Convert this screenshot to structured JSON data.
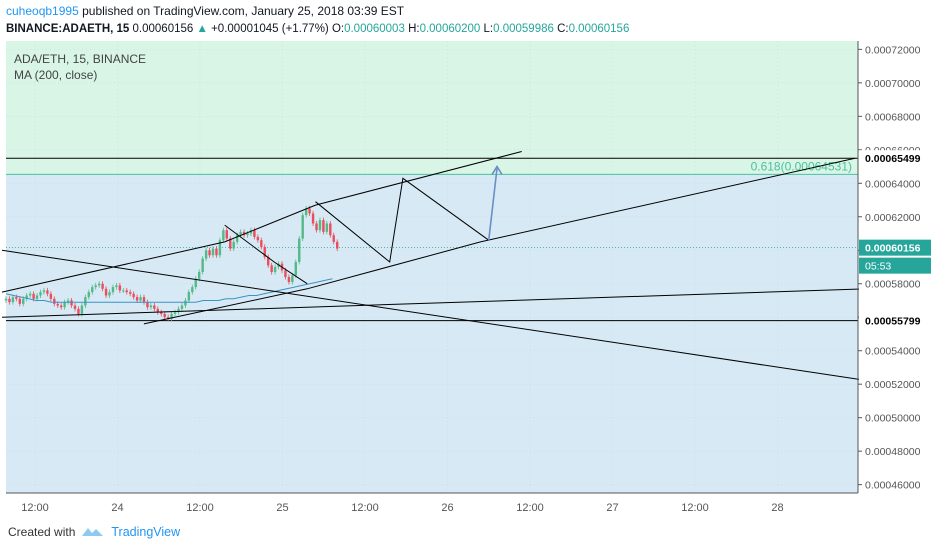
{
  "header": {
    "user": "cuheoqb1995",
    "published_text": "published on TradingView.com, January 25, 2018 03:39 EST",
    "symbol_line": "BINANCE:ADAETH, 15",
    "last": "0.00060156",
    "change_arrow": "▲",
    "change": "+0.00001045 (+1.77%)",
    "o_label": "O:",
    "o_value": "0.00060003",
    "h_label": "H:",
    "h_value": "0.00060200",
    "l_label": "L:",
    "l_value": "0.00059986",
    "c_label": "C:",
    "c_value": "0.00060156"
  },
  "legend": {
    "series": "ADA/ETH, 15, BINANCE",
    "indicator": "MA (200, close)"
  },
  "footer": {
    "created_with": "Created with",
    "brand": "TradingView"
  },
  "colors": {
    "upper_zone": "#d8f5e6",
    "lower_zone": "#d6e9f5",
    "up_candle": "#53b987",
    "down_candle": "#eb4d5c",
    "ma_line": "#3b93c4",
    "arrow": "#6a8fc7",
    "fib": "#4cc0a0"
  },
  "chart_data": {
    "type": "candlestick",
    "title": "ADA/ETH, 15, BINANCE",
    "y_ticks": [
      "0.00072000",
      "0.00070000",
      "0.00068000",
      "0.00066000",
      "0.00064000",
      "0.00062000",
      "0.00060000",
      "0.00058000",
      "0.00056000",
      "0.00054000",
      "0.00052000",
      "0.00050000",
      "0.00048000",
      "0.00046000"
    ],
    "x_ticks": [
      "12:00",
      "24",
      "12:00",
      "25",
      "12:00",
      "26",
      "12:00",
      "27",
      "12:00",
      "28"
    ],
    "ylim": [
      0.000455,
      0.000725
    ],
    "price_labels": {
      "upper_level": "0.00065499",
      "current": "0.00060156",
      "countdown": "05:53",
      "lower_level": "0.00055799"
    },
    "fib_label": "0.618(0.00064531)",
    "fib_value": 0.00064531,
    "upper_level_value": 0.00065499,
    "lower_level_value": 0.00055799,
    "current_value": 0.00060156,
    "time_range_days": [
      23.3,
      28.55
    ],
    "candles_close": [
      0.000571,
      0.000569,
      0.000572,
      0.000571,
      0.000568,
      0.000571,
      0.000573,
      0.000574,
      0.000571,
      0.000573,
      0.000575,
      0.000576,
      0.000574,
      0.000571,
      0.000568,
      0.000567,
      0.000566,
      0.000569,
      0.00057,
      0.000567,
      0.000565,
      0.000562,
      0.000567,
      0.000572,
      0.000575,
      0.000578,
      0.000579,
      0.00058,
      0.000577,
      0.000573,
      0.000575,
      0.000578,
      0.000579,
      0.000576,
      0.000576,
      0.000575,
      0.000574,
      0.000572,
      0.00057,
      0.000572,
      0.000569,
      0.000566,
      0.000567,
      0.000565,
      0.000563,
      0.000562,
      0.00056,
      0.000559,
      0.000562,
      0.000563,
      0.000565,
      0.000567,
      0.00057,
      0.000575,
      0.000578,
      0.000583,
      0.000587,
      0.000595,
      0.0006,
      0.000597,
      0.000601,
      0.000597,
      0.000606,
      0.000612,
      0.000607,
      0.000601,
      0.000605,
      0.000609,
      0.000611,
      0.000609,
      0.00061,
      0.000612,
      0.000608,
      0.000606,
      0.000602,
      0.000596,
      0.000591,
      0.000587,
      0.00059,
      0.000592,
      0.000588,
      0.000584,
      0.000581,
      0.000585,
      0.000593,
      0.000607,
      0.000621,
      0.000625,
      0.000622,
      0.000616,
      0.000612,
      0.000618,
      0.000611,
      0.000616,
      0.000609,
      0.000605,
      0.000601
    ],
    "ma200": [
      0.000574,
      0.000573,
      0.000572,
      0.000571,
      0.00057,
      0.00057,
      0.000569,
      0.000569,
      0.000569,
      0.000569,
      0.000569,
      0.000569,
      0.000569,
      0.000569,
      0.000569,
      0.000569,
      0.000569,
      0.000569,
      0.000569,
      0.000569,
      0.000569,
      0.000569,
      0.000569,
      0.000569,
      0.000569,
      0.000569,
      0.00057,
      0.00057,
      0.00057,
      0.000571,
      0.000571,
      0.000572,
      0.000573,
      0.000573,
      0.000574,
      0.000575,
      0.000576,
      0.000577,
      0.000578,
      0.000579,
      0.00058,
      0.000581,
      0.000582,
      0.000583
    ],
    "trendlines": [
      {
        "name": "channel-upper",
        "points": [
          [
            23.3,
            0.000575
          ],
          [
            24.65,
            0.000605
          ],
          [
            25.2,
            0.000627
          ],
          [
            26.45,
            0.000659
          ]
        ]
      },
      {
        "name": "channel-lower",
        "points": [
          [
            24.16,
            0.000556
          ],
          [
            25.15,
            0.000577
          ],
          [
            26.2,
            0.000605
          ],
          [
            28.47,
            0.000655
          ]
        ]
      },
      {
        "name": "descending-line",
        "points": [
          [
            23.3,
            0.0006
          ],
          [
            28.55,
            0.000522
          ]
        ]
      },
      {
        "name": "flat-line",
        "points": [
          [
            23.3,
            0.00056
          ],
          [
            28.55,
            0.000577
          ]
        ]
      },
      {
        "name": "zigzag-projection",
        "points": [
          [
            25.2,
            0.000629
          ],
          [
            25.65,
            0.000593
          ],
          [
            25.73,
            0.000643
          ],
          [
            26.25,
            0.000606
          ]
        ]
      },
      {
        "name": "pullback-left",
        "points": [
          [
            24.65,
            0.000615
          ],
          [
            24.95,
            0.000593
          ],
          [
            25.15,
            0.00058
          ]
        ]
      }
    ],
    "arrow_target": {
      "from": [
        26.25,
        0.000606
      ],
      "to": [
        26.3,
        0.00065
      ]
    }
  }
}
